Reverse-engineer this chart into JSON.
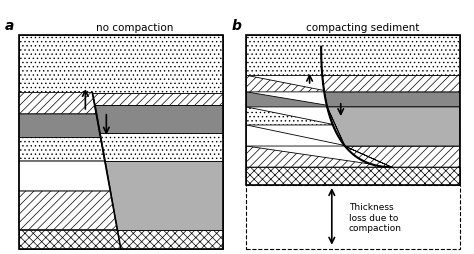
{
  "title_a": "no compaction",
  "title_b": "compacting sediment",
  "label_a": "a",
  "label_b": "b",
  "annotation_text": "Thickness\nloss due to\ncompaction",
  "bg_color": "#ffffff",
  "gray_med": "#888888",
  "gray_light": "#b0b0b0",
  "white": "#ffffff",
  "black": "#000000"
}
